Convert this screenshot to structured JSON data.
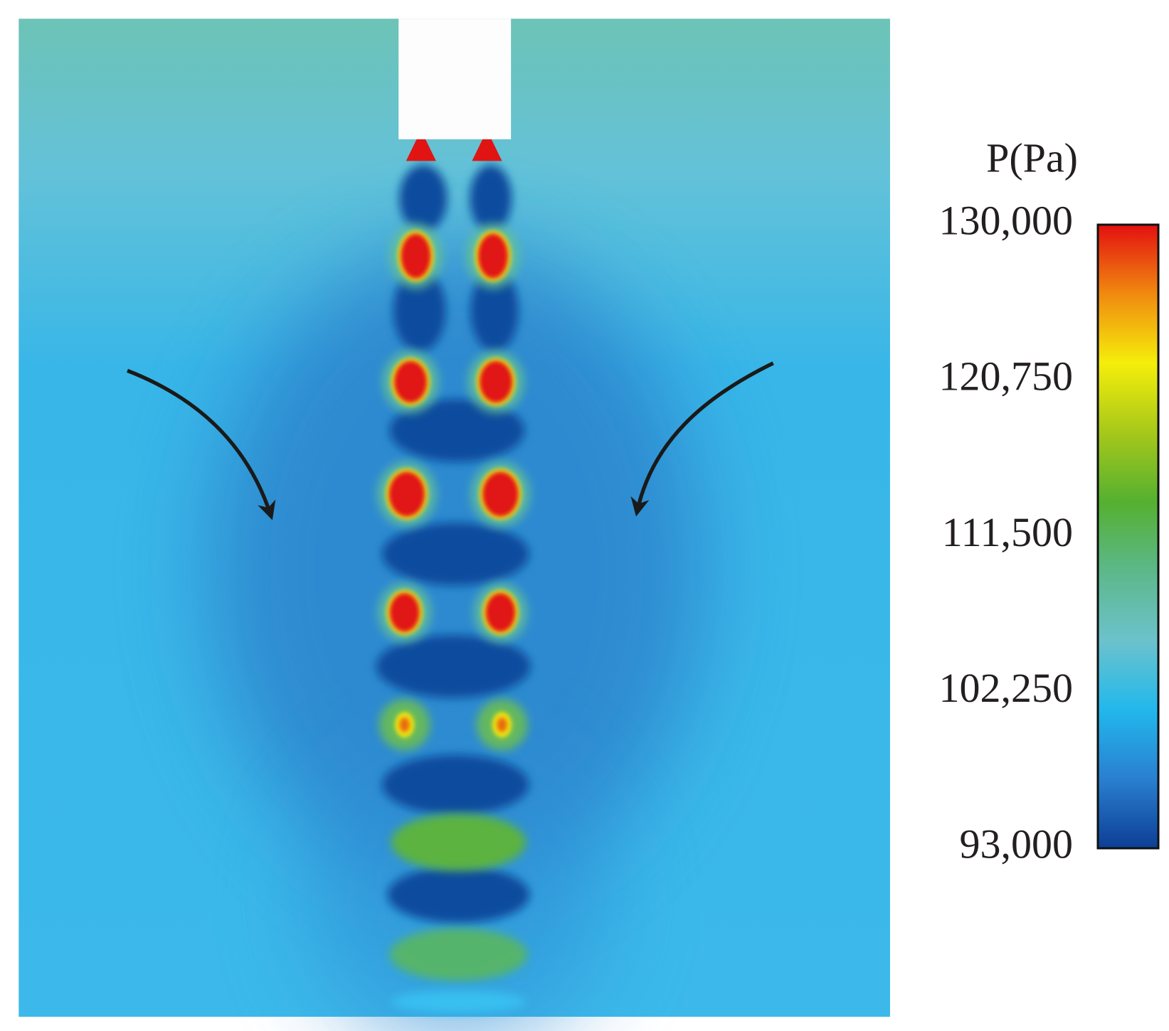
{
  "chart_data": {
    "type": "heatmap",
    "colorbar": {
      "label": "P(Pa)",
      "lim": [
        93000,
        130000
      ],
      "ticks": [
        {
          "value": 130000,
          "label": "130,000"
        },
        {
          "value": 120750,
          "label": "120,750"
        },
        {
          "value": 111500,
          "label": "111,500"
        },
        {
          "value": 102250,
          "label": "102,250"
        },
        {
          "value": 93000,
          "label": "93,000"
        }
      ],
      "colormap": [
        "#0c3f95",
        "#2a7fd0",
        "#22b8ec",
        "#6cc2cc",
        "#5cb88a",
        "#55b030",
        "#a6c81a",
        "#f5ee0a",
        "#f08a10",
        "#e31010"
      ]
    }
  }
}
